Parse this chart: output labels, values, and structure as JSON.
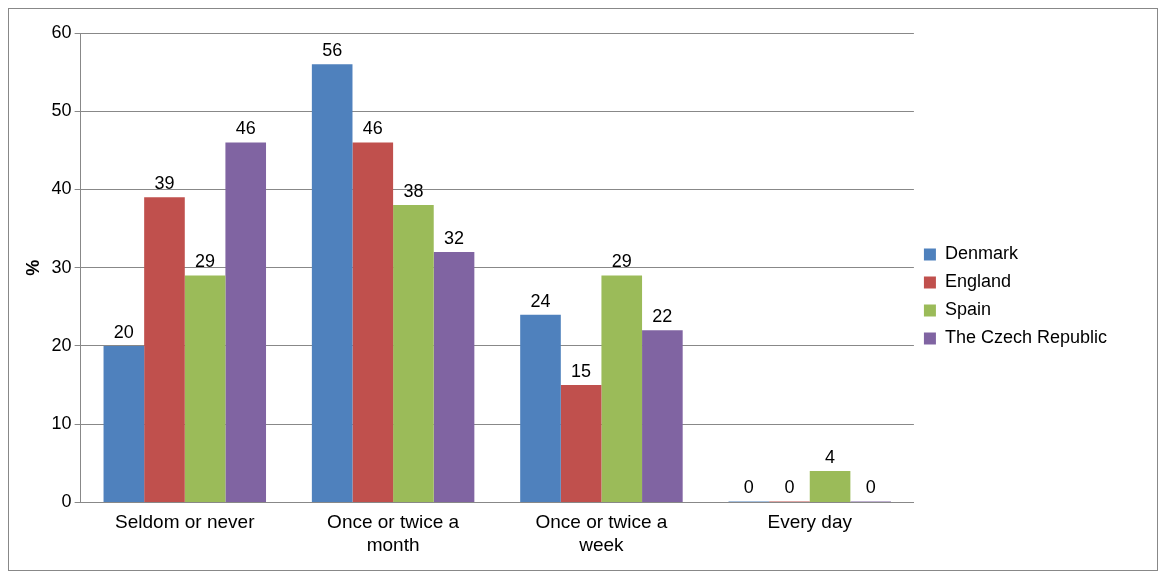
{
  "chart_data": {
    "type": "bar",
    "ylabel": "%",
    "categories": [
      "Seldom or never",
      "Once or twice a month",
      "Once or twice a week",
      "Every day"
    ],
    "series": [
      {
        "name": "Denmark",
        "color": "#4f81bd",
        "values": [
          20,
          56,
          24,
          0
        ]
      },
      {
        "name": "England",
        "color": "#c0504d",
        "values": [
          39,
          46,
          15,
          0
        ]
      },
      {
        "name": "Spain",
        "color": "#9bbb59",
        "values": [
          29,
          38,
          29,
          4
        ]
      },
      {
        "name": "The Czech Republic",
        "color": "#8064a2",
        "values": [
          46,
          32,
          22,
          0
        ]
      }
    ],
    "ylim": [
      0,
      60
    ],
    "yticks": [
      0,
      10,
      20,
      30,
      40,
      50,
      60
    ],
    "grid": "y",
    "legend": "right",
    "data_labels": true
  }
}
